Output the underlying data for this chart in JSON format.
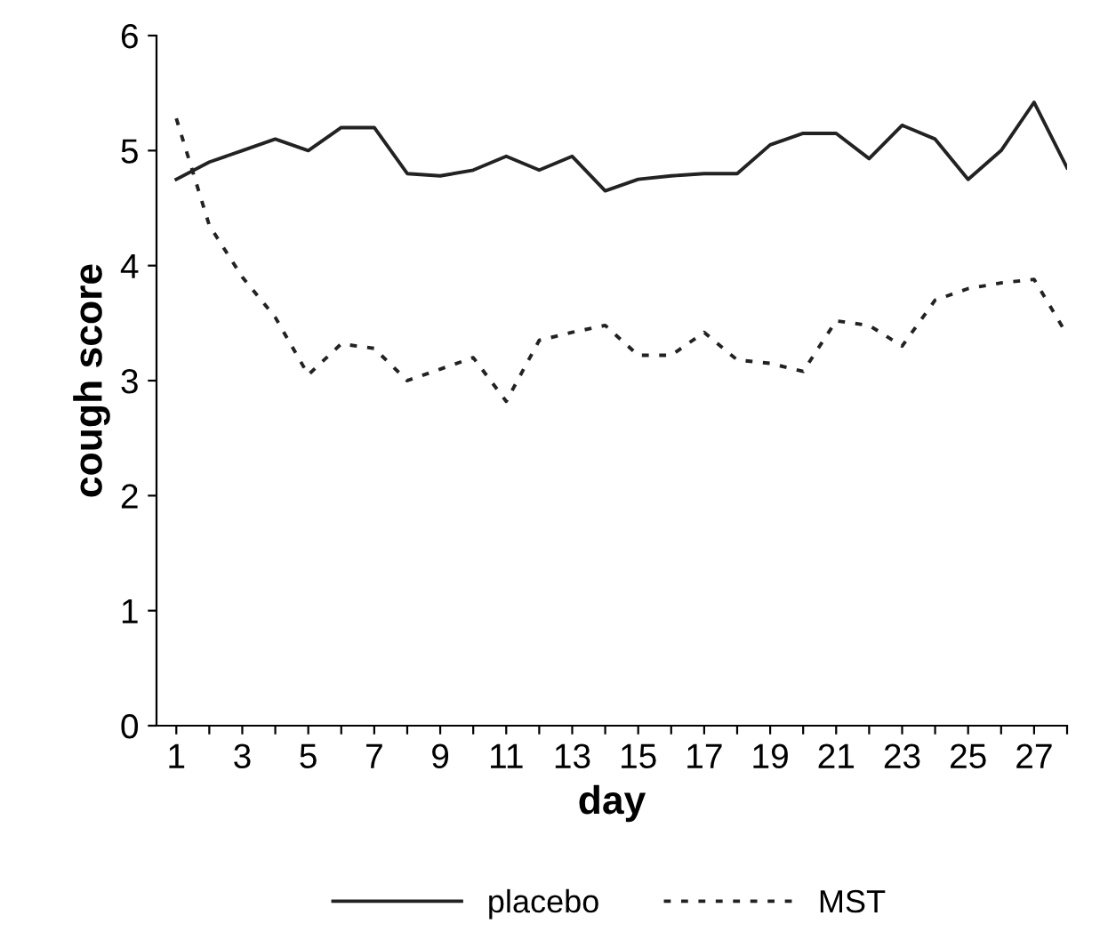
{
  "chart_data": {
    "type": "line",
    "xlabel": "day",
    "ylabel": "cough score",
    "x": [
      1,
      2,
      3,
      4,
      5,
      6,
      7,
      8,
      9,
      10,
      11,
      12,
      13,
      14,
      15,
      16,
      17,
      18,
      19,
      20,
      21,
      22,
      23,
      24,
      25,
      26,
      27,
      28
    ],
    "series": [
      {
        "name": "placebo",
        "color": "#222222",
        "line_style": "solid",
        "values": [
          4.75,
          4.9,
          5.0,
          5.1,
          5.0,
          5.2,
          5.2,
          4.8,
          4.78,
          4.83,
          4.95,
          4.83,
          4.95,
          4.65,
          4.75,
          4.78,
          4.8,
          4.8,
          5.05,
          5.15,
          5.15,
          4.93,
          5.22,
          5.1,
          4.75,
          5.0,
          5.42,
          4.85
        ]
      },
      {
        "name": "MST",
        "color": "#222222",
        "line_style": "dotted",
        "values": [
          5.28,
          4.35,
          3.9,
          3.55,
          3.05,
          3.32,
          3.28,
          3.0,
          3.1,
          3.2,
          2.82,
          3.35,
          3.42,
          3.48,
          3.22,
          3.22,
          3.42,
          3.18,
          3.15,
          3.08,
          3.52,
          3.48,
          3.3,
          3.7,
          3.8,
          3.85,
          3.88,
          3.4
        ]
      }
    ],
    "xlim": [
      0.4,
      28
    ],
    "xticks": [
      1,
      {
        "value": 2,
        "label": null
      },
      3,
      {
        "value": 4,
        "label": null
      },
      5,
      {
        "value": 6,
        "label": null
      },
      7,
      {
        "value": 8,
        "label": null
      },
      9,
      {
        "value": 10,
        "label": null
      },
      11,
      {
        "value": 12,
        "label": null
      },
      13,
      {
        "value": 14,
        "label": null
      },
      15,
      {
        "value": 16,
        "label": null
      },
      17,
      {
        "value": 18,
        "label": null
      },
      19,
      {
        "value": 20,
        "label": null
      },
      21,
      {
        "value": 22,
        "label": null
      },
      23,
      {
        "value": 24,
        "label": null
      },
      25,
      {
        "value": 26,
        "label": null
      },
      27,
      {
        "value": 28,
        "label": null
      }
    ],
    "ylim": [
      0,
      6
    ],
    "yticks": [
      0,
      1,
      2,
      3,
      4,
      5,
      6
    ],
    "grid": false,
    "legend": "bottom",
    "marker": "none"
  }
}
